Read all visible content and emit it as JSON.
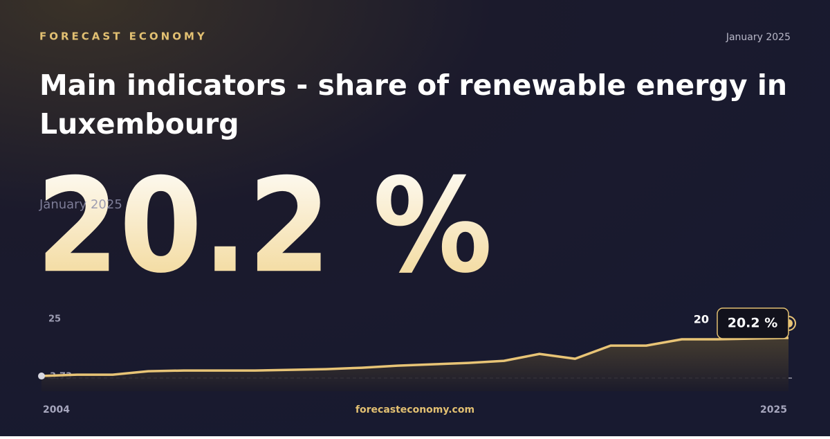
{
  "brand": "FORECAST ECONOMY",
  "site": "forecasteconomy.com",
  "chart_data": {
    "type": "line",
    "title": "Main indicators - share of renewable energy in Luxembourg",
    "latest": {
      "value": 20.2,
      "label": "20.2 %",
      "date": "January 2025"
    },
    "reference_value": 20,
    "x": [
      2004,
      2005,
      2006,
      2007,
      2008,
      2009,
      2010,
      2011,
      2012,
      2013,
      2014,
      2015,
      2016,
      2017,
      2018,
      2019,
      2020,
      2021,
      2022,
      2023,
      2024,
      2025
    ],
    "series": [
      {
        "name": "Share of renewable energy",
        "color": "#e8c476",
        "values": [
          3.73,
          4.3,
          4.3,
          5.8,
          6.1,
          6.1,
          6.1,
          6.4,
          6.7,
          7.3,
          8.2,
          8.8,
          9.4,
          10.3,
          13.3,
          11.2,
          16.9,
          16.9,
          19.6,
          19.6,
          19.9,
          20.2
        ]
      }
    ],
    "xlim": [
      2004,
      2025
    ],
    "xticks": [
      2004,
      2025
    ],
    "ylim": [
      0,
      25
    ],
    "yticks": [
      3.73,
      25
    ]
  }
}
